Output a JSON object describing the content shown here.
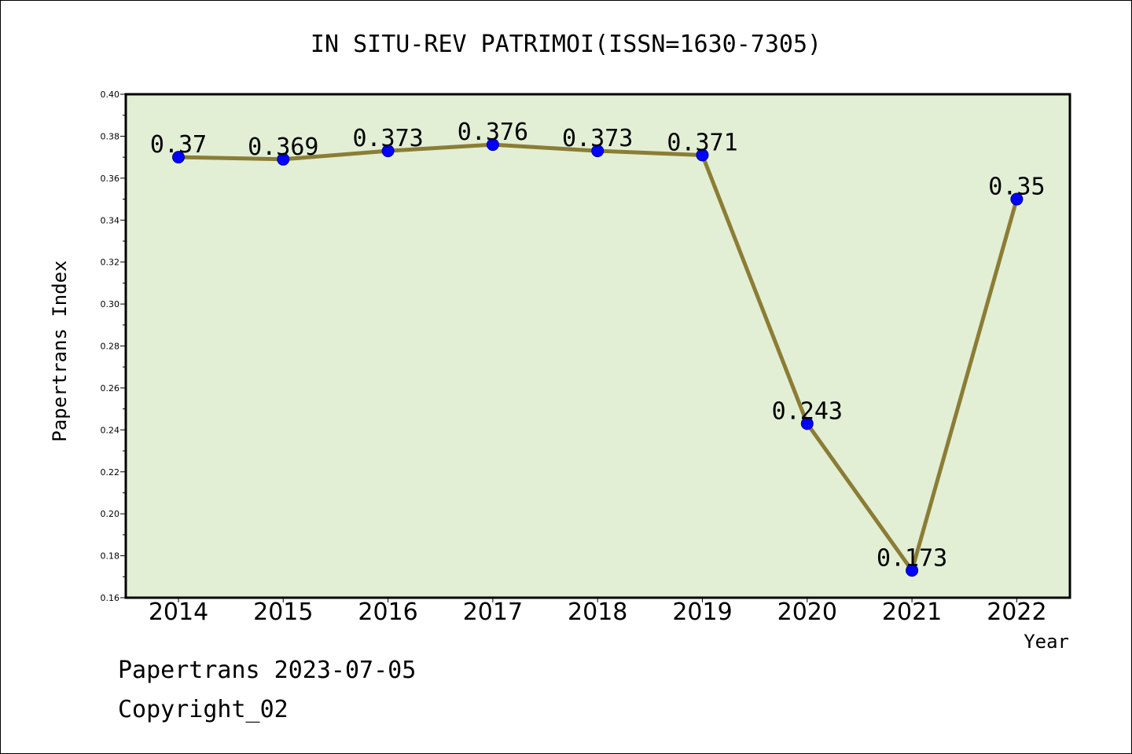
{
  "chart_data": {
    "type": "line",
    "title": "IN SITU-REV PATRIMOI(ISSN=1630-7305)",
    "xlabel": "Year",
    "ylabel": "Papertrans Index",
    "categories": [
      "2014",
      "2015",
      "2016",
      "2017",
      "2018",
      "2019",
      "2020",
      "2021",
      "2022"
    ],
    "values": [
      0.37,
      0.369,
      0.373,
      0.376,
      0.373,
      0.371,
      0.243,
      0.173,
      0.35
    ],
    "data_labels": [
      "0.37",
      "0.369",
      "0.373",
      "0.376",
      "0.373",
      "0.371",
      "0.243",
      "0.173",
      "0.35"
    ],
    "ylim": [
      0.16,
      0.4
    ],
    "yticks": [
      "0.16",
      "0.18",
      "0.20",
      "0.22",
      "0.24",
      "0.26",
      "0.28",
      "0.30",
      "0.32",
      "0.34",
      "0.36",
      "0.38",
      "0.40"
    ],
    "grid": false,
    "colors": {
      "line": "#8b7d35",
      "marker": "#0000ff",
      "plot_background": "#e2efd5"
    }
  },
  "footer": {
    "line1": "Papertrans 2023-07-05",
    "line2": "Copyright_02"
  }
}
